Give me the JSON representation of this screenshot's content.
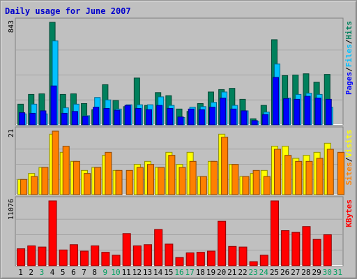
{
  "chart_data": [
    {
      "type": "bar",
      "title": "Daily usage for June 2007",
      "categories": [
        "1",
        "2",
        "3",
        "4",
        "5",
        "6",
        "7",
        "8",
        "9",
        "10",
        "11",
        "12",
        "13",
        "14",
        "15",
        "16",
        "17",
        "18",
        "19",
        "20",
        "21",
        "22",
        "23",
        "24",
        "25",
        "26",
        "27",
        "28",
        "29",
        "30",
        "31"
      ],
      "weekend_days": [
        "3",
        "9",
        "10",
        "16",
        "17",
        "23",
        "24",
        "30",
        "31"
      ],
      "panels": [
        {
          "name": "hits-files-pages",
          "ymax_label": "843",
          "ymax": 843,
          "legend": [
            "Pages",
            "Files",
            "Hits"
          ],
          "series": [
            {
              "name": "Hits",
              "color": "#00805c",
              "values": [
                170,
                250,
                255,
                843,
                250,
                255,
                175,
                125,
                330,
                200,
                150,
                385,
                160,
                265,
                240,
                130,
                110,
                175,
                270,
                290,
                300,
                210,
                50,
                160,
                700,
                405,
                410,
                420,
                350,
                415,
                0
              ]
            },
            {
              "name": "Files",
              "color": "#00c0ff",
              "values": [
                90,
                170,
                90,
                690,
                140,
                170,
                75,
                225,
                205,
                130,
                165,
                165,
                165,
                230,
                160,
                60,
                145,
                150,
                185,
                270,
                160,
                115,
                30,
                105,
                500,
                220,
                250,
                260,
                250,
                145,
                0
              ]
            },
            {
              "name": "Pages",
              "color": "#0000ff",
              "values": [
                100,
                95,
                115,
                320,
                95,
                110,
                70,
                145,
                135,
                120,
                160,
                135,
                125,
                160,
                135,
                65,
                130,
                125,
                145,
                220,
                130,
                115,
                35,
                85,
                390,
                215,
                210,
                235,
                220,
                210,
                0
              ]
            }
          ]
        },
        {
          "name": "visits-sites",
          "ymax_label": "21",
          "ymax": 21,
          "legend": [
            "Sites",
            "Visits"
          ],
          "series": [
            {
              "name": "Visits",
              "color": "#ffff00",
              "values": [
                5,
                7,
                9,
                20,
                14,
                11,
                8,
                9,
                13,
                8,
                0,
                10,
                11,
                9,
                14,
                10,
                14,
                6,
                11,
                20,
                10,
                6,
                7,
                8,
                16,
                16,
                12,
                13,
                14,
                17,
                0
              ]
            },
            {
              "name": "Sites",
              "color": "#ff8000",
              "values": [
                5,
                6,
                9,
                21,
                16,
                11,
                7,
                9,
                14,
                8,
                8,
                9,
                10,
                9,
                13,
                9,
                11,
                6,
                11,
                19,
                10,
                6,
                8,
                6,
                15,
                13,
                11,
                11,
                12,
                15,
                14
              ]
            }
          ]
        },
        {
          "name": "kbytes",
          "ymax_label": "11076",
          "ymax": 11076,
          "legend": [
            "KBytes"
          ],
          "series": [
            {
              "name": "KBytes",
              "color": "#ff0000",
              "values": [
                2900,
                3400,
                3200,
                11076,
                2700,
                3600,
                2500,
                3400,
                2300,
                1800,
                5500,
                3400,
                3600,
                6200,
                3700,
                1400,
                2200,
                2300,
                2500,
                7600,
                3300,
                3200,
                700,
                1800,
                11076,
                6000,
                5700,
                6700,
                4500,
                5300,
                0
              ]
            }
          ]
        }
      ]
    }
  ]
}
